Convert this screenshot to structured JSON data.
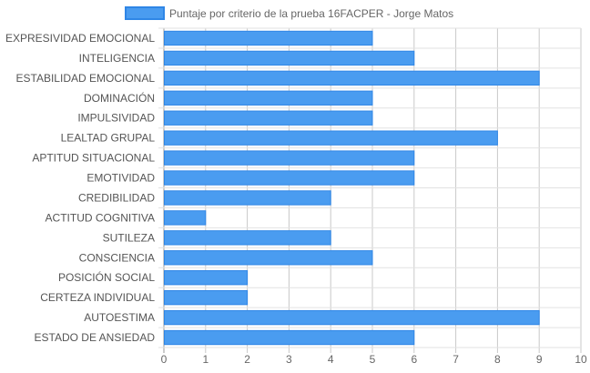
{
  "chart_data": {
    "type": "bar",
    "orientation": "horizontal",
    "categories": [
      "EXPRESIVIDAD EMOCIONAL",
      "INTELIGENCIA",
      "ESTABILIDAD EMOCIONAL",
      "DOMINACIÓN",
      "IMPULSIVIDAD",
      "LEALTAD GRUPAL",
      "APTITUD SITUACIONAL",
      "EMOTIVIDAD",
      "CREDIBILIDAD",
      "ACTITUD COGNITIVA",
      "SUTILEZA",
      "CONSCIENCIA",
      "POSICIÓN SOCIAL",
      "CERTEZA INDIVIDUAL",
      "AUTOESTIMA",
      "ESTADO DE ANSIEDAD"
    ],
    "series": [
      {
        "name": "Puntaje por criterio de la prueba 16FACPER - Jorge Matos",
        "values": [
          5,
          6,
          9,
          5,
          5,
          8,
          6,
          6,
          4,
          1,
          4,
          5,
          2,
          2,
          9,
          6
        ],
        "color": "#4a9cf0",
        "border_color": "#2f86e6"
      }
    ],
    "x_ticks": [
      "0",
      "1",
      "2",
      "3",
      "4",
      "5",
      "6",
      "7",
      "8",
      "9",
      "10"
    ],
    "xlim": [
      0,
      10
    ],
    "grid": true,
    "legend_position": "top"
  }
}
